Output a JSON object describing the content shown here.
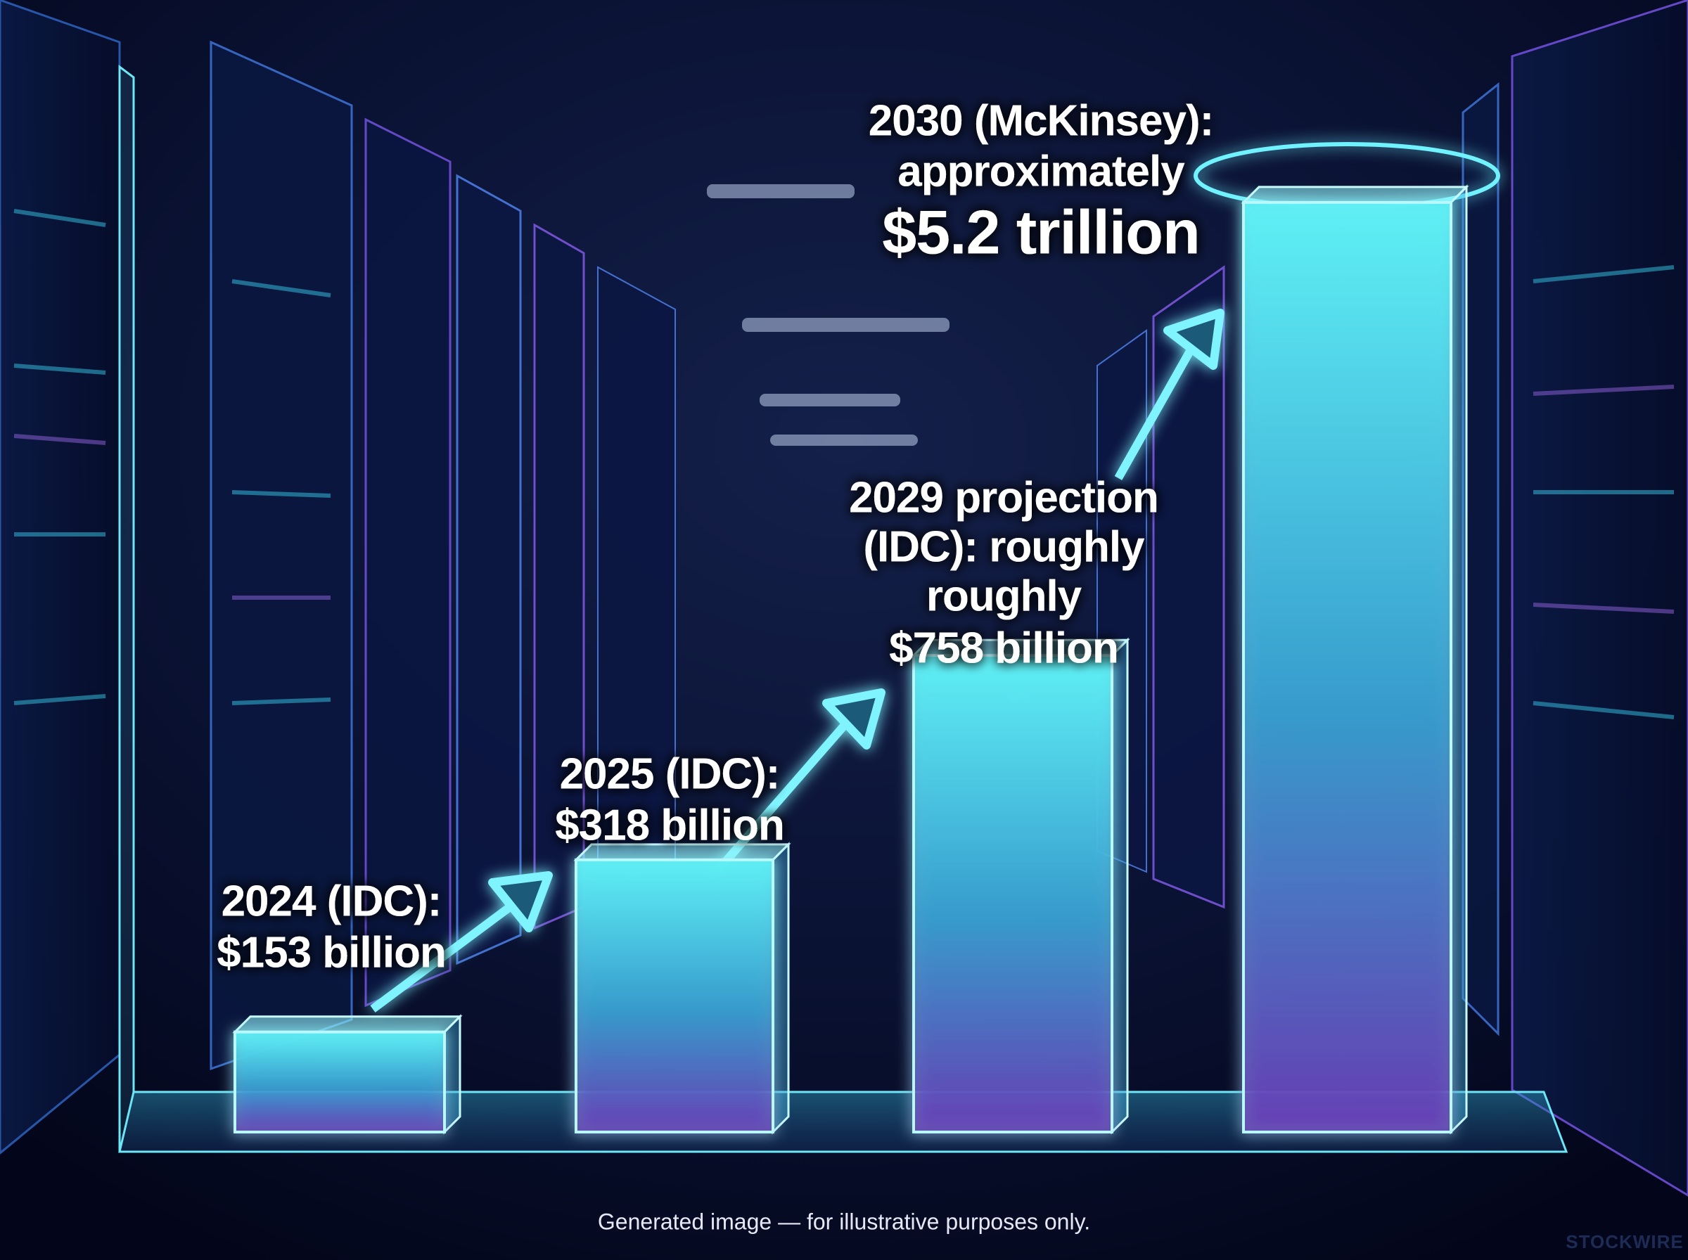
{
  "chart_data": {
    "type": "bar",
    "categories": [
      [
        "2024 (IDC):"
      ],
      [
        "2025 (IDC):"
      ],
      [
        "2029 projection",
        "(IDC): roughly",
        "roughly"
      ],
      [
        "2030 (McKinsey):",
        "approximately"
      ]
    ],
    "values": [
      153,
      318,
      758,
      5200
    ],
    "value_labels": [
      "$153 billion",
      "$318 billion",
      "$758 billion",
      "$5.2 trillion"
    ],
    "log_scale": true,
    "ylim": [
      100,
      6000
    ],
    "note": "Generated image — for illustrative purposes only.",
    "watermark": "STOCKWIRE"
  }
}
